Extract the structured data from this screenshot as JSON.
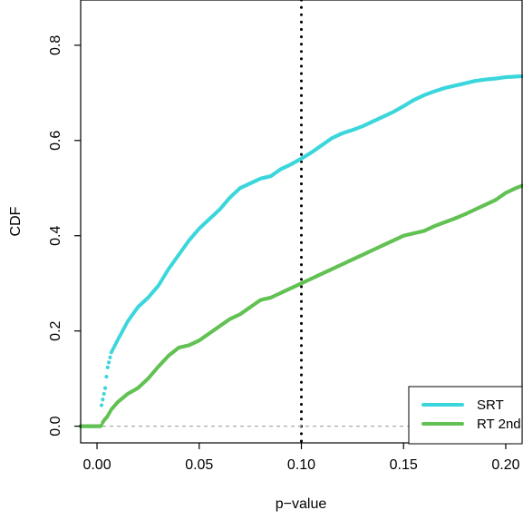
{
  "chart_data": {
    "type": "scatter",
    "xlabel": "p−value",
    "ylabel": "CDF",
    "xlim": [
      -0.008,
      0.208
    ],
    "ylim": [
      -0.035,
      0.895
    ],
    "x_ticks": [
      0.0,
      0.05,
      0.1,
      0.15,
      0.2
    ],
    "x_tick_labels": [
      "0.00",
      "0.05",
      "0.10",
      "0.15",
      "0.20"
    ],
    "y_ticks": [
      0.0,
      0.2,
      0.4,
      0.6,
      0.8
    ],
    "y_tick_labels": [
      "0.0",
      "0.2",
      "0.4",
      "0.6",
      "0.8"
    ],
    "grid": false,
    "reference_lines": [
      {
        "orientation": "vertical",
        "value": 0.1,
        "style": "dotted",
        "color": "#000000"
      },
      {
        "orientation": "horizontal",
        "value": 0.0,
        "style": "dashed",
        "color": "#aaaaaa"
      }
    ],
    "legend": {
      "position": "bottom-right",
      "entries": [
        {
          "label": "SRT",
          "color": "#3ad6dc"
        },
        {
          "label": "RT 2nd",
          "color": "#62c153"
        }
      ]
    },
    "series": [
      {
        "name": "SRT",
        "color": "#3ad6dc",
        "points": [
          [
            -0.008,
            0.0
          ],
          [
            0.0,
            0.0
          ],
          [
            0.002,
            0.0
          ],
          [
            0.002,
            0.04
          ],
          [
            0.004,
            0.08
          ],
          [
            0.005,
            0.12
          ],
          [
            0.007,
            0.155
          ],
          [
            0.01,
            0.18
          ],
          [
            0.015,
            0.22
          ],
          [
            0.02,
            0.25
          ],
          [
            0.025,
            0.27
          ],
          [
            0.03,
            0.295
          ],
          [
            0.035,
            0.33
          ],
          [
            0.04,
            0.36
          ],
          [
            0.045,
            0.39
          ],
          [
            0.05,
            0.415
          ],
          [
            0.055,
            0.435
          ],
          [
            0.06,
            0.455
          ],
          [
            0.065,
            0.48
          ],
          [
            0.07,
            0.5
          ],
          [
            0.075,
            0.51
          ],
          [
            0.08,
            0.52
          ],
          [
            0.085,
            0.525
          ],
          [
            0.09,
            0.54
          ],
          [
            0.095,
            0.55
          ],
          [
            0.1,
            0.562
          ],
          [
            0.105,
            0.575
          ],
          [
            0.11,
            0.59
          ],
          [
            0.115,
            0.605
          ],
          [
            0.12,
            0.615
          ],
          [
            0.125,
            0.622
          ],
          [
            0.13,
            0.63
          ],
          [
            0.135,
            0.64
          ],
          [
            0.14,
            0.65
          ],
          [
            0.145,
            0.66
          ],
          [
            0.15,
            0.672
          ],
          [
            0.155,
            0.685
          ],
          [
            0.16,
            0.695
          ],
          [
            0.165,
            0.703
          ],
          [
            0.17,
            0.71
          ],
          [
            0.175,
            0.715
          ],
          [
            0.18,
            0.72
          ],
          [
            0.185,
            0.725
          ],
          [
            0.19,
            0.728
          ],
          [
            0.195,
            0.73
          ],
          [
            0.2,
            0.733
          ],
          [
            0.208,
            0.735
          ]
        ]
      },
      {
        "name": "RT 2nd",
        "color": "#62c153",
        "points": [
          [
            -0.008,
            0.0
          ],
          [
            0.0,
            0.0
          ],
          [
            0.002,
            0.0
          ],
          [
            0.003,
            0.01
          ],
          [
            0.005,
            0.02
          ],
          [
            0.007,
            0.035
          ],
          [
            0.01,
            0.05
          ],
          [
            0.015,
            0.068
          ],
          [
            0.02,
            0.08
          ],
          [
            0.025,
            0.1
          ],
          [
            0.03,
            0.125
          ],
          [
            0.035,
            0.148
          ],
          [
            0.04,
            0.165
          ],
          [
            0.045,
            0.17
          ],
          [
            0.05,
            0.18
          ],
          [
            0.055,
            0.195
          ],
          [
            0.06,
            0.21
          ],
          [
            0.065,
            0.225
          ],
          [
            0.07,
            0.235
          ],
          [
            0.075,
            0.25
          ],
          [
            0.08,
            0.265
          ],
          [
            0.085,
            0.27
          ],
          [
            0.09,
            0.28
          ],
          [
            0.095,
            0.29
          ],
          [
            0.1,
            0.3
          ],
          [
            0.105,
            0.31
          ],
          [
            0.11,
            0.32
          ],
          [
            0.115,
            0.33
          ],
          [
            0.12,
            0.34
          ],
          [
            0.125,
            0.35
          ],
          [
            0.13,
            0.36
          ],
          [
            0.135,
            0.37
          ],
          [
            0.14,
            0.38
          ],
          [
            0.145,
            0.39
          ],
          [
            0.15,
            0.4
          ],
          [
            0.155,
            0.405
          ],
          [
            0.16,
            0.41
          ],
          [
            0.165,
            0.42
          ],
          [
            0.17,
            0.428
          ],
          [
            0.175,
            0.436
          ],
          [
            0.18,
            0.445
          ],
          [
            0.185,
            0.455
          ],
          [
            0.19,
            0.465
          ],
          [
            0.195,
            0.475
          ],
          [
            0.2,
            0.49
          ],
          [
            0.205,
            0.5
          ],
          [
            0.208,
            0.505
          ]
        ]
      }
    ]
  }
}
